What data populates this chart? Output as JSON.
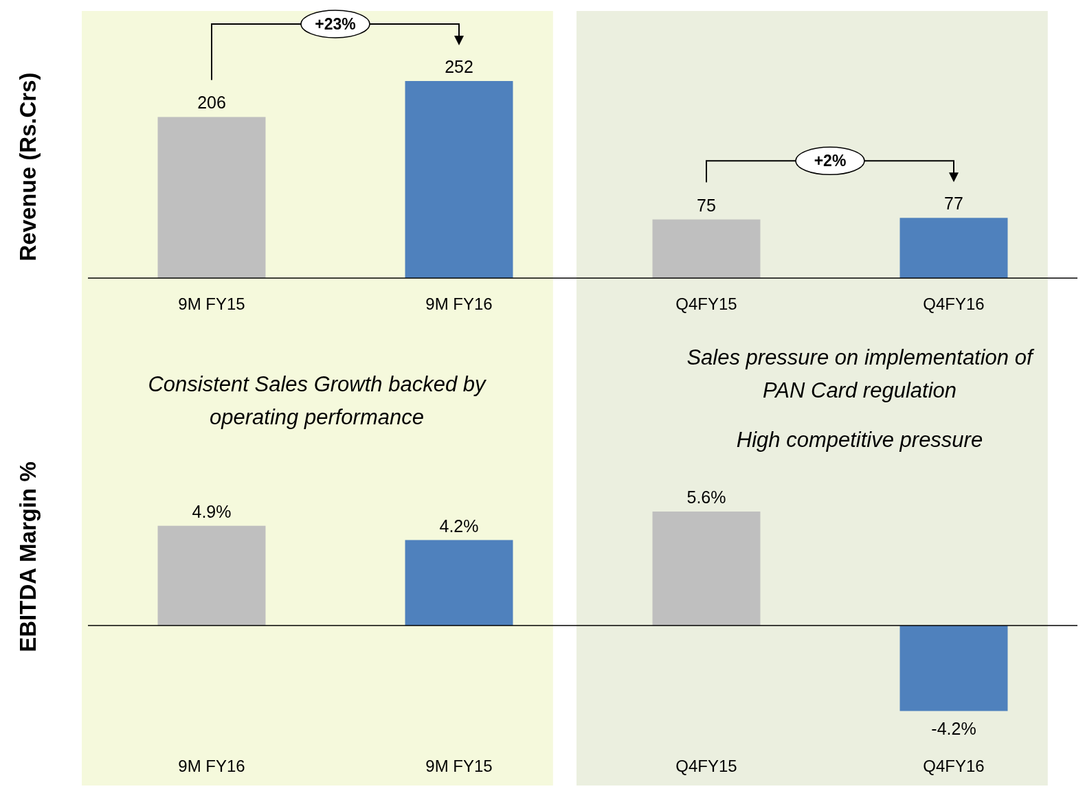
{
  "chart_data": [
    {
      "type": "bar",
      "ylabel": "Revenue (Rs.Crs)",
      "categories": [
        "9M FY15",
        "9M FY16",
        "Q4FY15",
        "Q4FY16"
      ],
      "values": [
        206,
        252,
        75,
        77
      ],
      "colors": [
        "#bfbfbf",
        "#4f81bd",
        "#bfbfbf",
        "#4f81bd"
      ],
      "data_labels": true,
      "annotations": [
        "+23%",
        "+2%"
      ],
      "bands": [
        {
          "axis": "x",
          "from": "9M FY15",
          "to": "9M FY16",
          "color": "#f5f9dc"
        },
        {
          "axis": "x",
          "from": "Q4FY15",
          "to": "Q4FY16",
          "color": "#ebefdf"
        }
      ]
    },
    {
      "type": "bar",
      "ylabel": "EBITDA Margin %",
      "categories": [
        "9M FY16",
        "9M FY15",
        "Q4FY15",
        "Q4FY16"
      ],
      "values": [
        4.9,
        4.2,
        5.6,
        -4.2
      ],
      "colors": [
        "#bfbfbf",
        "#4f81bd",
        "#bfbfbf",
        "#4f81bd"
      ],
      "value_labels": [
        "4.9%",
        "4.2%",
        "5.6%",
        "-4.2%"
      ],
      "annotations": [
        "Consistent Sales Growth backed by operating performance",
        "Sales pressure on implementation of PAN Card regulation",
        "High competitive pressure"
      ],
      "bands": [
        {
          "axis": "x",
          "from": "9M FY16",
          "to": "9M FY15",
          "color": "#f5f9dc"
        },
        {
          "axis": "x",
          "from": "Q4FY15",
          "to": "Q4FY16",
          "color": "#ebefdf"
        }
      ]
    }
  ]
}
